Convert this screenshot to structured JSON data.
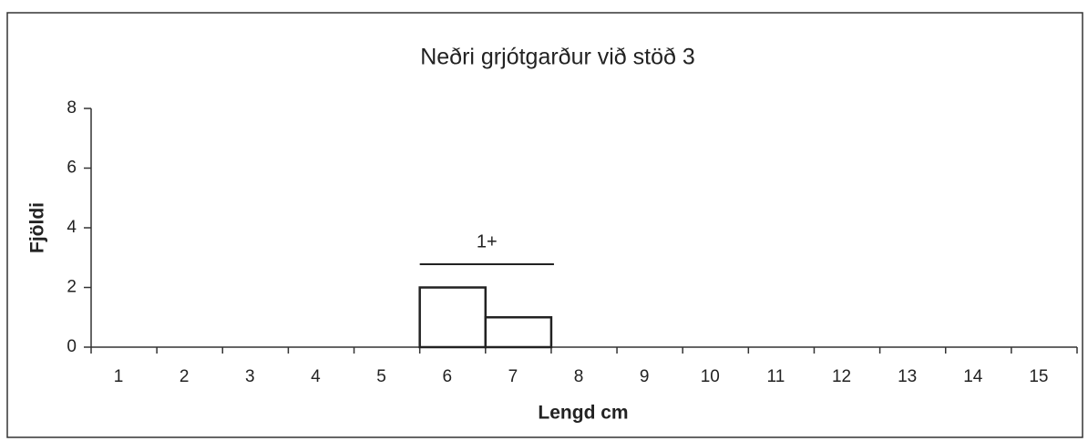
{
  "chart_data": {
    "type": "bar",
    "title": "Neðri grjótgarður við stöð 3",
    "x_label": "Lengd cm",
    "y_label": "Fjöldi",
    "categories": [
      "1",
      "2",
      "3",
      "4",
      "5",
      "6",
      "7",
      "8",
      "9",
      "10",
      "11",
      "12",
      "13",
      "14",
      "15"
    ],
    "values": [
      0,
      0,
      0,
      0,
      0,
      2,
      1,
      0,
      0,
      0,
      0,
      0,
      0,
      0,
      0
    ],
    "color": "#ffffff",
    "edge_color": "#222222",
    "ylim": [
      0,
      8
    ],
    "yticks": [
      0,
      2,
      4,
      6,
      8
    ],
    "grid": false,
    "annotations": [
      {
        "text": "1+"
      }
    ]
  }
}
